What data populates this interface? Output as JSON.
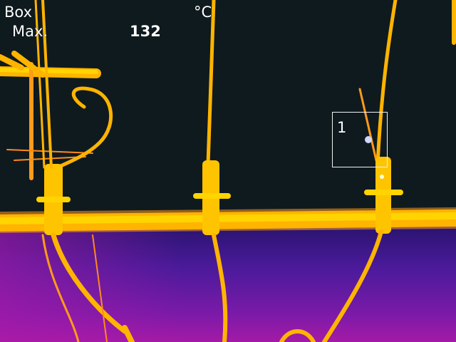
{
  "overlay": {
    "mode_label": "Box",
    "stat_label": "Max.",
    "unit": "°C",
    "max_value": "132"
  },
  "measurement_box": {
    "label": "1"
  },
  "palette": {
    "background": "#0f1a1f",
    "hot_core": "#ffd000",
    "hot_edge": "#ff9a1a",
    "cool_purple": "#5a1aa0",
    "cool_magenta": "#b21aa8",
    "hotspot": "#cfd8ff"
  }
}
